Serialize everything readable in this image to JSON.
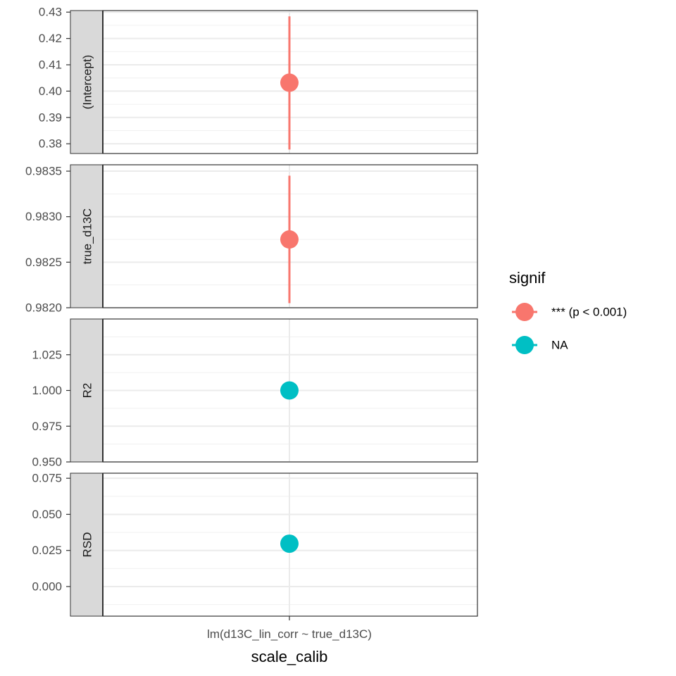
{
  "chart_data": {
    "type": "scatter",
    "facet_direction": "vertical",
    "facet_strip_position": "left",
    "xlabel": "scale_calib",
    "x_categories": [
      "lm(d13C_lin_corr ~ true_d13C)"
    ],
    "grid": true,
    "legend": {
      "title": "signif",
      "position": "right",
      "entries": [
        {
          "label": "*** (p < 0.001)",
          "color": "#F8766D"
        },
        {
          "label": "NA",
          "color": "#00BFC4"
        }
      ]
    },
    "panels": [
      {
        "strip": "(Intercept)",
        "ylim": [
          0.3763,
          0.4306
        ],
        "ticks": [
          0.38,
          0.39,
          0.4,
          0.41,
          0.42,
          0.43
        ],
        "tick_labels": [
          "0.38",
          "0.39",
          "0.40",
          "0.41",
          "0.42",
          "0.43"
        ],
        "points": [
          {
            "x": "lm(d13C_lin_corr ~ true_d13C)",
            "y": 0.4032,
            "ymin": 0.3778,
            "ymax": 0.4284,
            "signif": "*** (p < 0.001)"
          }
        ]
      },
      {
        "strip": "true_d13C",
        "ylim": [
          0.982,
          0.98357
        ],
        "ticks": [
          0.982,
          0.9825,
          0.983,
          0.9835
        ],
        "tick_labels": [
          "0.9820",
          "0.9825",
          "0.9830",
          "0.9835"
        ],
        "points": [
          {
            "x": "lm(d13C_lin_corr ~ true_d13C)",
            "y": 0.98275,
            "ymin": 0.98205,
            "ymax": 0.98345,
            "signif": "*** (p < 0.001)"
          }
        ]
      },
      {
        "strip": "R2",
        "ylim": [
          0.95,
          1.05
        ],
        "ticks": [
          0.95,
          0.975,
          1.0,
          1.025
        ],
        "tick_labels": [
          "0.950",
          "0.975",
          "1.000",
          "1.025"
        ],
        "points": [
          {
            "x": "lm(d13C_lin_corr ~ true_d13C)",
            "y": 1.0,
            "signif": "NA"
          }
        ]
      },
      {
        "strip": "RSD",
        "ylim": [
          -0.0205,
          0.0785
        ],
        "ticks": [
          0.0,
          0.025,
          0.05,
          0.075
        ],
        "tick_labels": [
          "0.000",
          "0.025",
          "0.050",
          "0.075"
        ],
        "points": [
          {
            "x": "lm(d13C_lin_corr ~ true_d13C)",
            "y": 0.0297,
            "signif": "NA"
          }
        ]
      }
    ]
  }
}
